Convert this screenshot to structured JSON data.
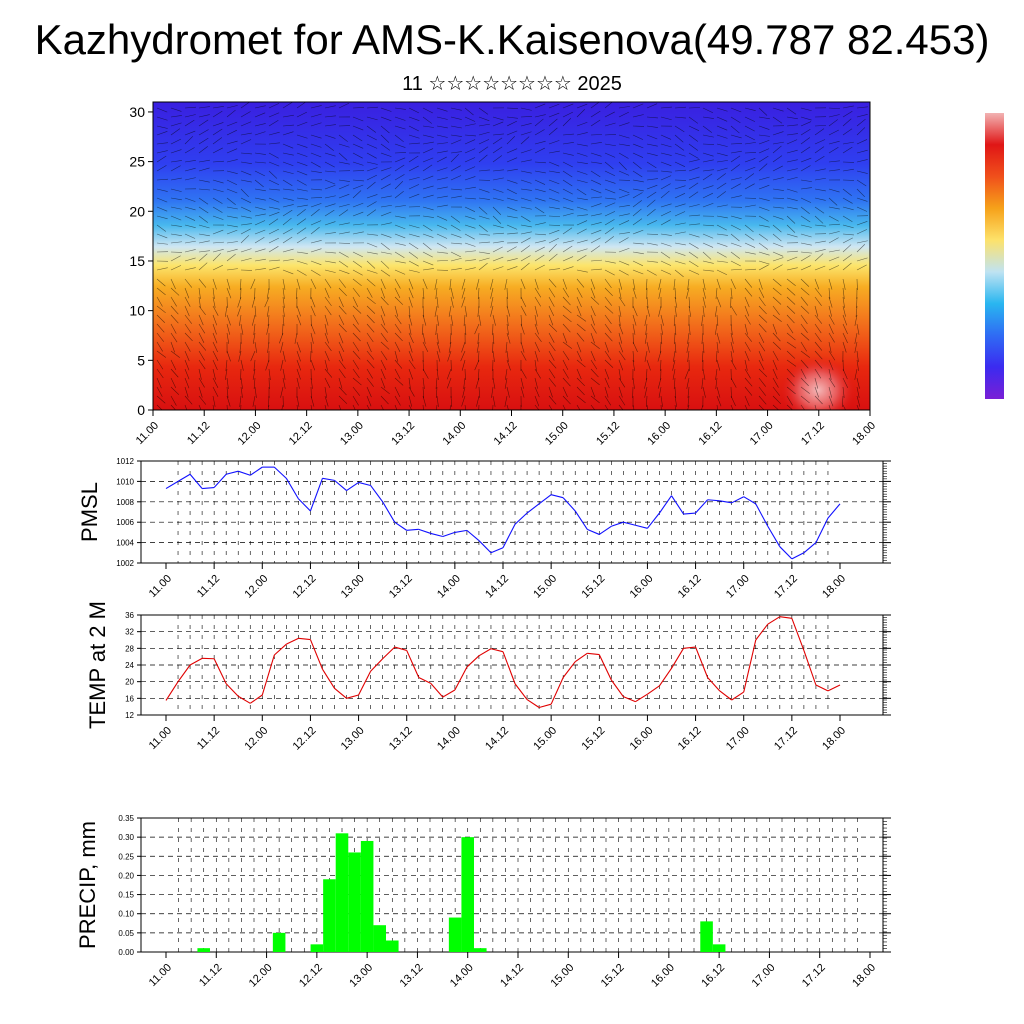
{
  "header": {
    "title": "Kazhydromet for AMS-K.Kaisenova(49.787 82.453)",
    "subtitle": "11 ☆☆☆☆☆☆☆☆ 2025"
  },
  "chart_data": [
    {
      "type": "heatmap",
      "name": "vertical cross-section",
      "x_ticks": [
        "11.00",
        "11.12",
        "12.00",
        "12.12",
        "13.00",
        "13.12",
        "14.00",
        "14.12",
        "15.00",
        "15.12",
        "16.00",
        "16.12",
        "17.00",
        "17.12",
        "18.00"
      ],
      "y_ticks": [
        0,
        5,
        10,
        15,
        20,
        25,
        30
      ],
      "ylim": [
        0,
        31
      ],
      "colorbar": {
        "colors": [
          "#7a1fd6",
          "#3b2bf0",
          "#2f6bf4",
          "#29b6f0",
          "#bfe3f2",
          "#fde26b",
          "#f6a21a",
          "#f0501b",
          "#e01616",
          "#f2b3b3"
        ]
      }
    },
    {
      "type": "line",
      "ylabel": "PMSL",
      "color": "#1010ff",
      "x_ticks": [
        "11.00",
        "11.12",
        "12.00",
        "12.12",
        "13.00",
        "13.12",
        "14.00",
        "14.12",
        "15.00",
        "15.12",
        "16.00",
        "16.12",
        "17.00",
        "17.12",
        "18.00"
      ],
      "y_ticks": [
        1002,
        1004,
        1006,
        1008,
        1010,
        1012
      ],
      "ylim": [
        1002,
        1012
      ],
      "values": [
        1009.3,
        1010.0,
        1010.7,
        1009.3,
        1009.4,
        1010.7,
        1011.0,
        1010.6,
        1011.4,
        1011.4,
        1010.3,
        1008.3,
        1007.1,
        1010.3,
        1010.1,
        1009.1,
        1009.9,
        1009.6,
        1008.0,
        1006.0,
        1005.2,
        1005.3,
        1004.9,
        1004.6,
        1005.0,
        1005.2,
        1004.2,
        1003.0,
        1003.5,
        1005.8,
        1006.9,
        1007.8,
        1008.7,
        1008.4,
        1007.1,
        1005.3,
        1004.8,
        1005.6,
        1006.0,
        1005.7,
        1005.4,
        1006.9,
        1008.6,
        1006.8,
        1006.9,
        1008.2,
        1008.1,
        1007.9,
        1008.5,
        1007.8,
        1005.6,
        1003.6,
        1002.4,
        1003.0,
        1004.0,
        1006.4,
        1007.8
      ]
    },
    {
      "type": "line",
      "ylabel": "TEMP at 2 M",
      "color": "#e00000",
      "x_ticks": [
        "11.00",
        "11.12",
        "12.00",
        "12.12",
        "13.00",
        "13.12",
        "14.00",
        "14.12",
        "15.00",
        "15.12",
        "16.00",
        "16.12",
        "17.00",
        "17.12",
        "18.00"
      ],
      "y_ticks": [
        12,
        16,
        20,
        24,
        28,
        32,
        36
      ],
      "ylim": [
        12,
        36
      ],
      "values": [
        15.5,
        20.0,
        24.0,
        25.6,
        25.5,
        19.5,
        16.5,
        14.8,
        16.8,
        26.4,
        29.0,
        30.4,
        30.1,
        23.0,
        18.4,
        16.0,
        16.8,
        22.5,
        25.5,
        28.3,
        27.5,
        21.0,
        19.6,
        16.3,
        18.0,
        23.5,
        26.2,
        27.9,
        27.2,
        19.5,
        15.7,
        13.8,
        14.6,
        21.0,
        24.8,
        26.8,
        26.5,
        20.4,
        16.4,
        15.2,
        17.0,
        19.0,
        23.2,
        28.0,
        28.3,
        21.0,
        17.8,
        15.6,
        17.5,
        30.0,
        33.8,
        35.6,
        35.2,
        27.5,
        19.2,
        17.8,
        19.2
      ]
    },
    {
      "type": "bar",
      "ylabel": "PRECIP, mm",
      "color": "#00ff00",
      "x_ticks": [
        "11.00",
        "11.12",
        "12.00",
        "12.12",
        "13.00",
        "13.12",
        "14.00",
        "14.12",
        "15.00",
        "15.12",
        "16.00",
        "16.12",
        "17.00",
        "17.12",
        "18.00"
      ],
      "y_ticks": [
        0.0,
        0.05,
        0.1,
        0.15,
        0.2,
        0.25,
        0.3,
        0.35
      ],
      "ylim": [
        0,
        0.35
      ],
      "values": [
        0,
        0,
        0,
        0.01,
        0,
        0,
        0,
        0,
        0,
        0.05,
        0,
        0,
        0.02,
        0.19,
        0.31,
        0.26,
        0.29,
        0.07,
        0.03,
        0,
        0,
        0,
        0,
        0.09,
        0.3,
        0.01,
        0,
        0,
        0,
        0,
        0,
        0,
        0,
        0,
        0,
        0,
        0,
        0,
        0,
        0,
        0,
        0,
        0,
        0.08,
        0.02,
        0,
        0,
        0,
        0,
        0,
        0,
        0,
        0,
        0,
        0,
        0,
        0
      ]
    }
  ]
}
